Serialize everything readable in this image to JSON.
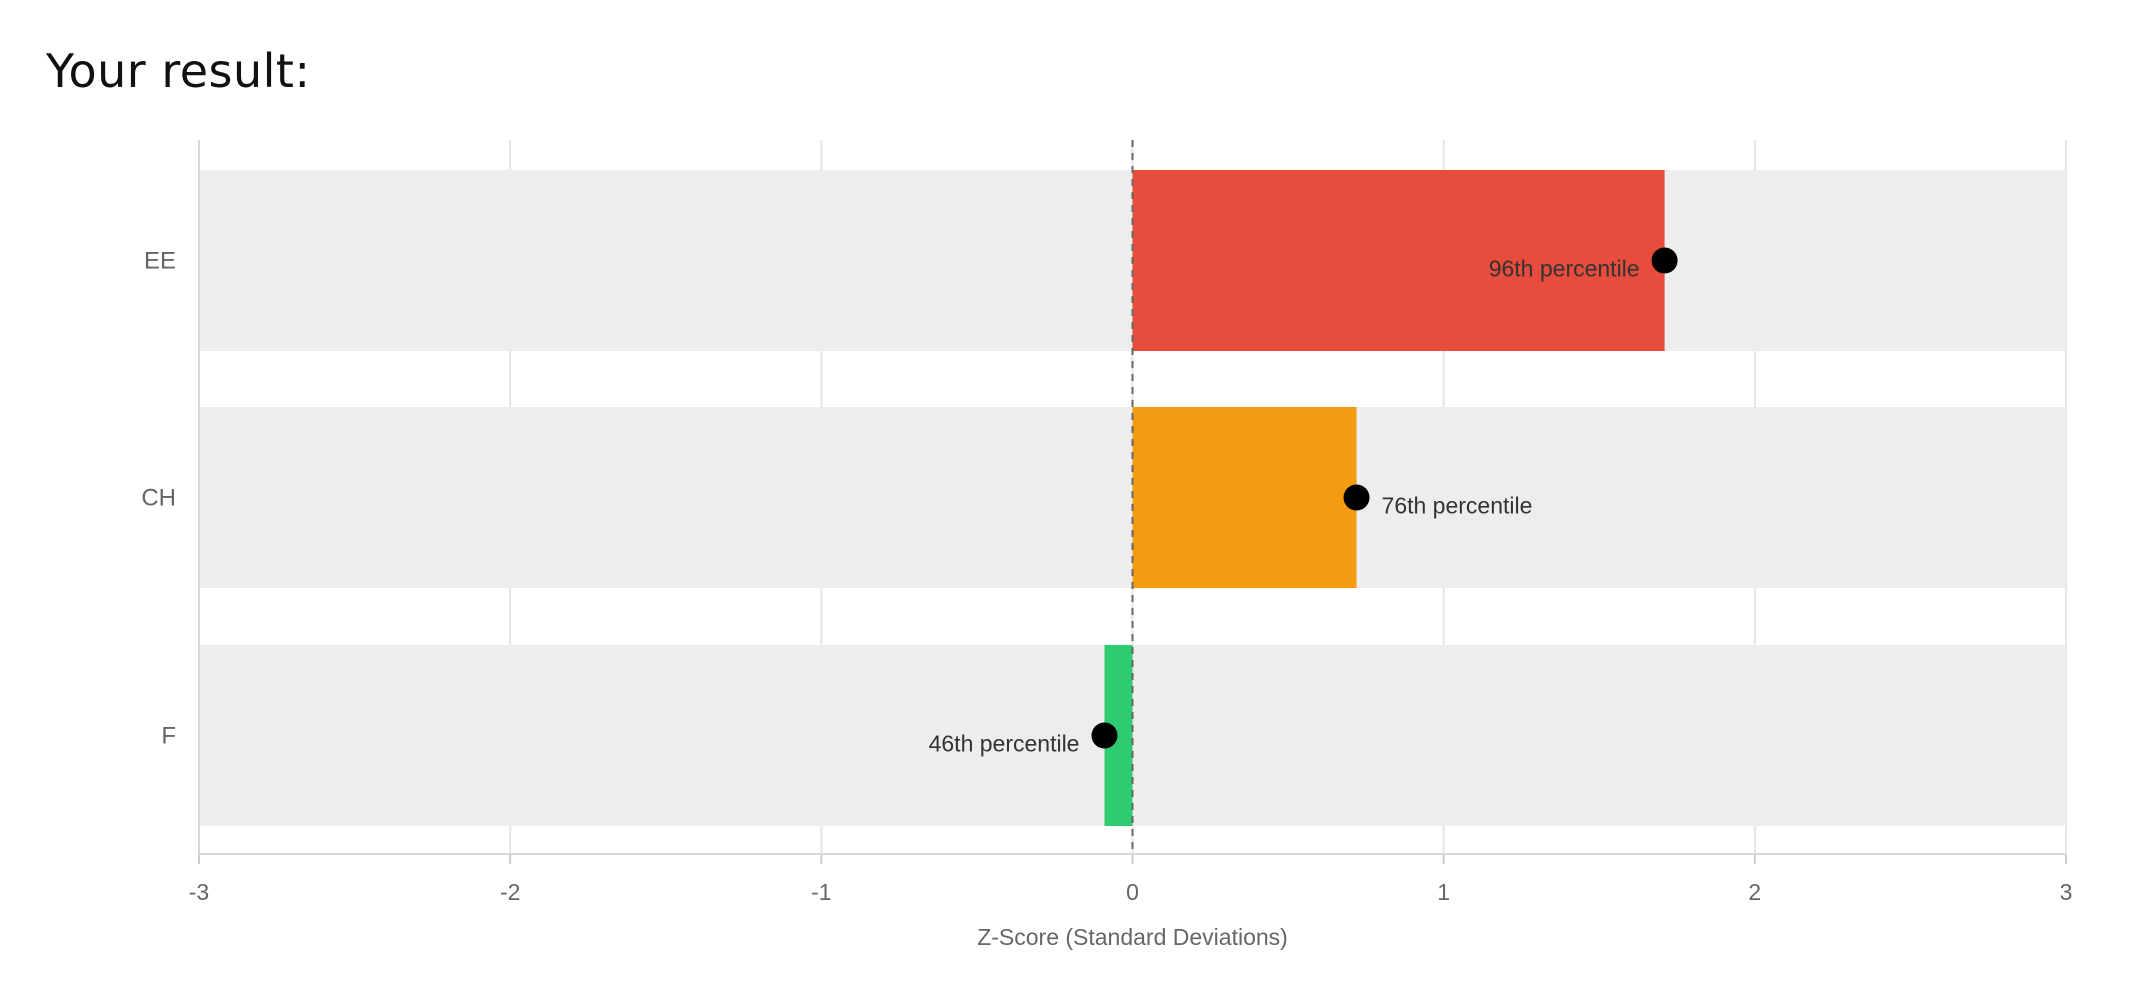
{
  "page": {
    "title": "Your result:"
  },
  "chart_data": {
    "type": "bar",
    "orientation": "horizontal",
    "categories": [
      "EE",
      "CH",
      "F"
    ],
    "values": [
      1.71,
      0.72,
      -0.09
    ],
    "colors": [
      "#e74c3c",
      "#f39c12",
      "#2ecc71"
    ],
    "band_color": "#ededed",
    "point_color": "#000000",
    "annotations": [
      "96th percentile",
      "76th percentile",
      "46th percentile"
    ],
    "xlabel": "Z-Score (Standard Deviations)",
    "ylabel": "",
    "xlim": [
      -3,
      3
    ],
    "xticks": [
      -3,
      -2,
      -1,
      0,
      1,
      2,
      3
    ],
    "xtick_labels": [
      "-3",
      "-2",
      "-1",
      "0",
      "1",
      "2",
      "3"
    ],
    "reference_line": 0,
    "grid": true,
    "legend": "none"
  }
}
